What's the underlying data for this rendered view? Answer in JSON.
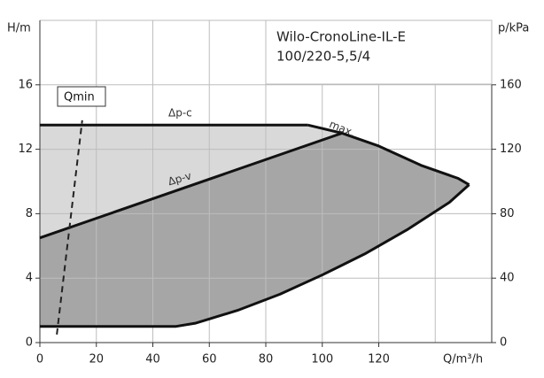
{
  "chart_data": {
    "type": "pump-curve",
    "title": [
      "Wilo-CronoLine-IL-E",
      "100/220-5,5/4"
    ],
    "y_label": "H/m",
    "y2_label": "p/kPa",
    "x_label": "Q/m³/h",
    "xlim": [
      0,
      160
    ],
    "ylim": [
      0,
      20
    ],
    "y2lim": [
      0,
      200
    ],
    "xticks": [
      0,
      20,
      40,
      60,
      80,
      100,
      120
    ],
    "xgrid": [
      0,
      20,
      40,
      60,
      80,
      100,
      120,
      140,
      160
    ],
    "yticks": [
      0,
      4,
      8,
      12,
      16
    ],
    "ygrid": [
      0,
      4,
      8,
      12,
      16,
      20
    ],
    "y2ticks": [
      0,
      40,
      80,
      120,
      160
    ],
    "grid": true,
    "series": [
      {
        "name": "Δp-c",
        "x": [
          0,
          95
        ],
        "values": [
          13.5,
          13.5
        ],
        "color": "#111"
      },
      {
        "name": "Δp-v",
        "x": [
          0,
          107
        ],
        "values": [
          6.5,
          13
        ],
        "color": "#111"
      },
      {
        "name": "max.",
        "x": [
          95,
          107,
          120,
          135,
          148,
          152
        ],
        "values": [
          13.5,
          13,
          12.2,
          11,
          10.2,
          9.8
        ],
        "color": "#111"
      },
      {
        "x": [
          0,
          48,
          55,
          70,
          85,
          100,
          115,
          130,
          145,
          152
        ],
        "values": [
          1,
          1,
          1.2,
          2,
          3,
          4.2,
          5.5,
          7,
          8.7,
          9.8
        ],
        "color": "#111"
      },
      {
        "name": "Qmin",
        "x": [
          6,
          15
        ],
        "values": [
          0.5,
          13.8
        ],
        "color": "#222",
        "dashed": true
      }
    ],
    "fill_light": "#d9d9d9",
    "fill_dark": "#a6a6a6"
  }
}
